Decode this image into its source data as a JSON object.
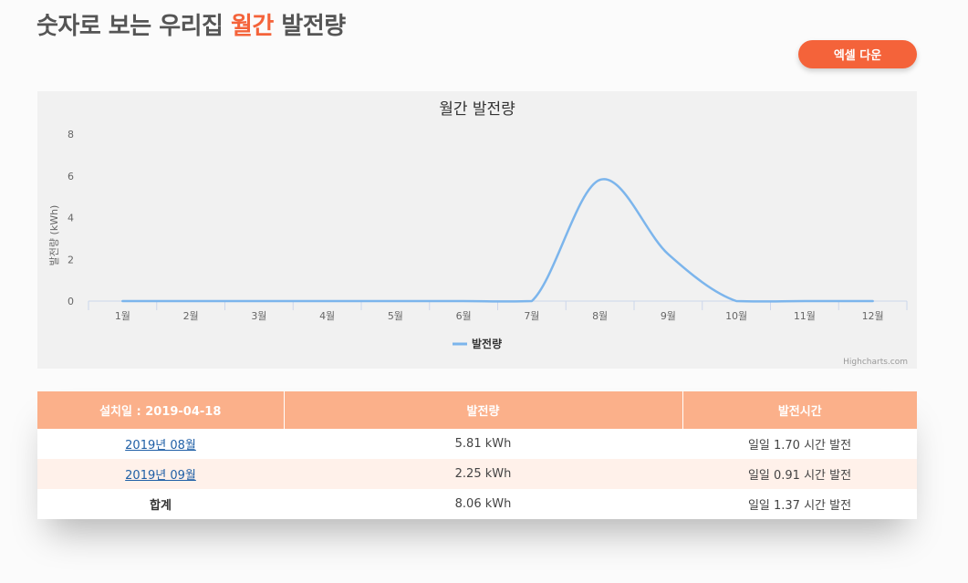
{
  "header": {
    "title_prefix": "숫자로 보는 우리집 ",
    "title_accent": "월간",
    "title_suffix": " 발전량",
    "excel_button": "엑셀 다운",
    "accent_color": "#f4633a"
  },
  "chart_data": {
    "type": "line",
    "title": "월간 발전량",
    "ylabel": "발전량 (kWh)",
    "xlabel": "",
    "categories": [
      "1월",
      "2월",
      "3월",
      "4월",
      "5월",
      "6월",
      "7월",
      "8월",
      "9월",
      "10월",
      "11월",
      "12월"
    ],
    "series": [
      {
        "name": "발전량",
        "color": "#7cb5ec",
        "values": [
          0,
          0,
          0,
          0,
          0,
          0,
          0,
          5.81,
          2.25,
          0,
          0,
          0
        ]
      }
    ],
    "ylim": [
      0,
      8
    ],
    "yticks": [
      "0",
      "2",
      "4",
      "6",
      "8"
    ],
    "legend": "bottom-center",
    "credits": "Highcharts.com",
    "grid": false
  },
  "table": {
    "headers": [
      "설치일 : 2019-04-18",
      "발전량",
      "발전시간"
    ],
    "rows": [
      {
        "period": "2019년 08월",
        "energy": "5.81 kWh",
        "hours": "일일 1.70 시간 발전"
      },
      {
        "period": "2019년 09월",
        "energy": "2.25 kWh",
        "hours": "일일 0.91 시간 발전"
      }
    ],
    "total": {
      "label": "합계",
      "energy": "8.06 kWh",
      "hours": "일일 1.37 시간 발전"
    }
  }
}
